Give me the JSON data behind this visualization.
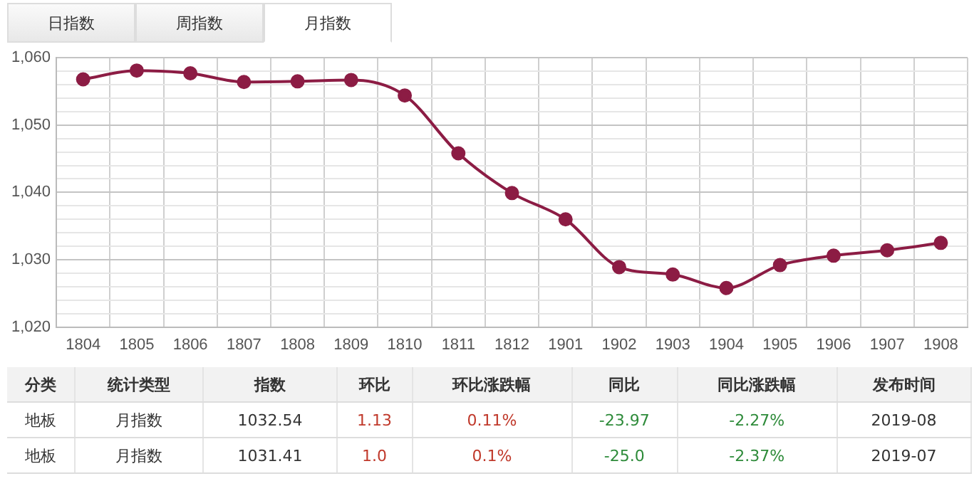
{
  "chart_data": [
    {
      "type": "line",
      "annotations": [
        "日指数",
        "周指数",
        "月指数"
      ],
      "categories": [
        "1804",
        "1805",
        "1806",
        "1807",
        "1808",
        "1809",
        "1810",
        "1811",
        "1812",
        "1901",
        "1902",
        "1903",
        "1904",
        "1905",
        "1906",
        "1907",
        "1908"
      ],
      "series": [
        {
          "color": "#8c1c44",
          "values": [
            1056.8,
            1058.1,
            1057.7,
            1056.4,
            1056.5,
            1056.7,
            1054.4,
            1045.8,
            1039.9,
            1036.0,
            1028.9,
            1027.8,
            1025.8,
            1029.2,
            1030.6,
            1031.4,
            1032.5
          ]
        }
      ],
      "ylim": [
        1020,
        1060
      ],
      "yticks": [
        {
          "value": 1020,
          "label": "1,020"
        },
        {
          "value": 1022,
          "label": null
        },
        {
          "value": 1024,
          "label": null
        },
        {
          "value": 1026,
          "label": null
        },
        {
          "value": 1028,
          "label": null
        },
        {
          "value": 1030,
          "label": "1,030"
        },
        {
          "value": 1032,
          "label": null
        },
        {
          "value": 1034,
          "label": null
        },
        {
          "value": 1036,
          "label": null
        },
        {
          "value": 1038,
          "label": null
        },
        {
          "value": 1040,
          "label": "1,040"
        },
        {
          "value": 1042,
          "label": null
        },
        {
          "value": 1044,
          "label": null
        },
        {
          "value": 1046,
          "label": null
        },
        {
          "value": 1048,
          "label": null
        },
        {
          "value": 1050,
          "label": "1,050"
        },
        {
          "value": 1052,
          "label": null
        },
        {
          "value": 1054,
          "label": null
        },
        {
          "value": 1056,
          "label": null
        },
        {
          "value": 1058,
          "label": null
        },
        {
          "value": 1060,
          "label": "1,060"
        }
      ],
      "grid": true,
      "marker": "circle",
      "line_style": "solid",
      "legend": false
    },
    {
      "type": "other",
      "categories": [
        "分类",
        "统计类型",
        "指数",
        "环比",
        "环比涨跌幅",
        "同比",
        "同比涨跌幅",
        "发布时间"
      ],
      "cell_labels": [
        [
          "地板",
          "月指数",
          "1032.54",
          "1.13",
          "0.11%",
          "-23.97",
          "-2.27%",
          "2019-08"
        ],
        [
          "地板",
          "月指数",
          "1031.41",
          "1.0",
          "0.1%",
          "-25.0",
          "-2.37%",
          "2019-07"
        ]
      ]
    }
  ]
}
